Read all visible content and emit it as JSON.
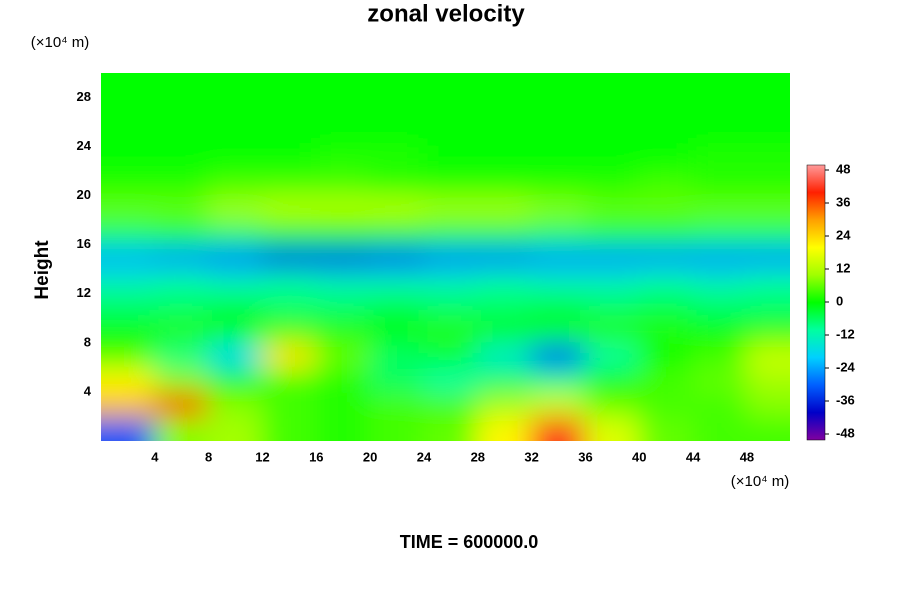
{
  "chart_data": {
    "type": "contour",
    "title": "zonal velocity",
    "y_label": "Height",
    "y_unit": "(×10⁴ m)",
    "x_unit": "(×10⁴ m)",
    "footer": "TIME = 600000.0",
    "xlim": [
      0,
      51.2
    ],
    "ylim": [
      0,
      30
    ],
    "xticks": [
      4,
      8,
      12,
      16,
      20,
      24,
      28,
      32,
      36,
      40,
      44,
      48
    ],
    "yticks": [
      4,
      8,
      12,
      16,
      20,
      24,
      28
    ],
    "x": [
      2,
      6,
      10,
      14,
      18,
      22,
      26,
      30,
      34,
      38,
      42,
      46,
      50
    ],
    "y": [
      1,
      3,
      5,
      7,
      9,
      11,
      13,
      15,
      17,
      19,
      21,
      23,
      25,
      27,
      29
    ],
    "z": [
      [
        -30,
        8,
        10,
        4,
        2,
        4,
        6,
        20,
        40,
        16,
        6,
        4,
        4
      ],
      [
        26,
        36,
        8,
        4,
        2,
        4,
        4,
        10,
        14,
        6,
        4,
        4,
        8
      ],
      [
        20,
        8,
        0,
        4,
        2,
        -6,
        -10,
        -6,
        -8,
        0,
        4,
        6,
        10
      ],
      [
        4,
        -8,
        -18,
        22,
        6,
        -6,
        -4,
        -14,
        -30,
        -10,
        0,
        4,
        14
      ],
      [
        0,
        2,
        0,
        4,
        2,
        0,
        2,
        0,
        -2,
        2,
        2,
        0,
        2
      ],
      [
        -6,
        -6,
        -4,
        -6,
        -6,
        -4,
        -6,
        -6,
        -4,
        -6,
        -4,
        -6,
        -6
      ],
      [
        -12,
        -10,
        -12,
        -10,
        -12,
        -12,
        -12,
        -10,
        -12,
        -12,
        -10,
        -12,
        -10
      ],
      [
        -22,
        -24,
        -26,
        -32,
        -32,
        -30,
        -26,
        -26,
        -24,
        -24,
        -24,
        -24,
        -24
      ],
      [
        -6,
        -4,
        -6,
        -2,
        0,
        -2,
        -4,
        -4,
        -6,
        -4,
        -4,
        -6,
        -6
      ],
      [
        6,
        6,
        10,
        12,
        12,
        12,
        10,
        10,
        8,
        6,
        6,
        6,
        6
      ],
      [
        2,
        2,
        4,
        4,
        4,
        2,
        2,
        2,
        2,
        2,
        4,
        2,
        2
      ],
      [
        0,
        0,
        0,
        0,
        2,
        2,
        0,
        0,
        0,
        0,
        0,
        2,
        2
      ],
      [
        0,
        0,
        0,
        0,
        0,
        0,
        0,
        0,
        0,
        0,
        0,
        0,
        0
      ],
      [
        0,
        0,
        0,
        0,
        0,
        0,
        0,
        0,
        0,
        0,
        0,
        0,
        0
      ],
      [
        0,
        0,
        0,
        0,
        0,
        0,
        0,
        0,
        0,
        0,
        0,
        0,
        0
      ]
    ],
    "zlim": [
      -48,
      48
    ],
    "colorbar_ticks": [
      48,
      36,
      24,
      12,
      0,
      -12,
      -24,
      -36,
      -48
    ],
    "colormap": [
      "#8000a0",
      "#0000c8",
      "#0060ff",
      "#00d0ff",
      "#00ffa0",
      "#00ff00",
      "#a0ff00",
      "#ffff00",
      "#ffa000",
      "#ff2000",
      "#ff9a9a"
    ]
  }
}
